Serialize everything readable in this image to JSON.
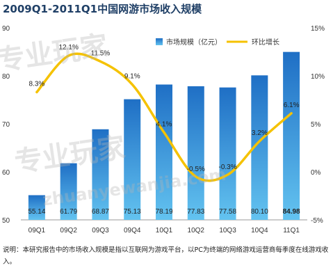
{
  "title": "2009Q1-2011Q1中国网游市场收入规模",
  "note": "说明：本研究报告中的市场收入规模是指以互联网为游戏平台，以PC为终端的网络游戏运营商每季度在线游戏收入。",
  "watermark": {
    "main": "专业玩家",
    "sub": "zhuanyewanjia.com"
  },
  "chart_data": {
    "type": "bar",
    "categories": [
      "09Q1",
      "09Q2",
      "09Q3",
      "09Q4",
      "10Q1",
      "10Q2",
      "10Q3",
      "10Q4",
      "11Q1"
    ],
    "series": [
      {
        "name": "市场规模（亿元）",
        "type": "bar",
        "axis": "left",
        "values": [
          55.14,
          61.79,
          68.87,
          75.13,
          78.19,
          77.83,
          77.58,
          80.1,
          84.98
        ],
        "labels": [
          "55.14",
          "61.79",
          "68.87",
          "75.13",
          "78.19",
          "77.83",
          "77.58",
          "80.10",
          "84.98"
        ]
      },
      {
        "name": "环比增长",
        "type": "line",
        "axis": "right",
        "values": [
          8.3,
          12.1,
          11.5,
          9.1,
          4.1,
          -0.5,
          -0.3,
          3.2,
          6.1
        ],
        "labels": [
          "8.3%",
          "12.1%",
          "11.5%",
          "9.1%",
          "4.1%",
          "-0.5%",
          "-0.3%",
          "3.2%",
          "6.1%"
        ]
      }
    ],
    "left_axis": {
      "ylim": [
        50,
        90
      ],
      "ticks": [
        50,
        60,
        70,
        80,
        90
      ]
    },
    "right_axis": {
      "ylim": [
        -5,
        15
      ],
      "ticks": [
        "-5%",
        "0%",
        "5%",
        "10%",
        "15%"
      ]
    },
    "legend_position": "top-right",
    "colors": {
      "bar_top": "#1f6fc5",
      "bar_bottom": "#63c3f0",
      "line": "#f5c200"
    }
  }
}
